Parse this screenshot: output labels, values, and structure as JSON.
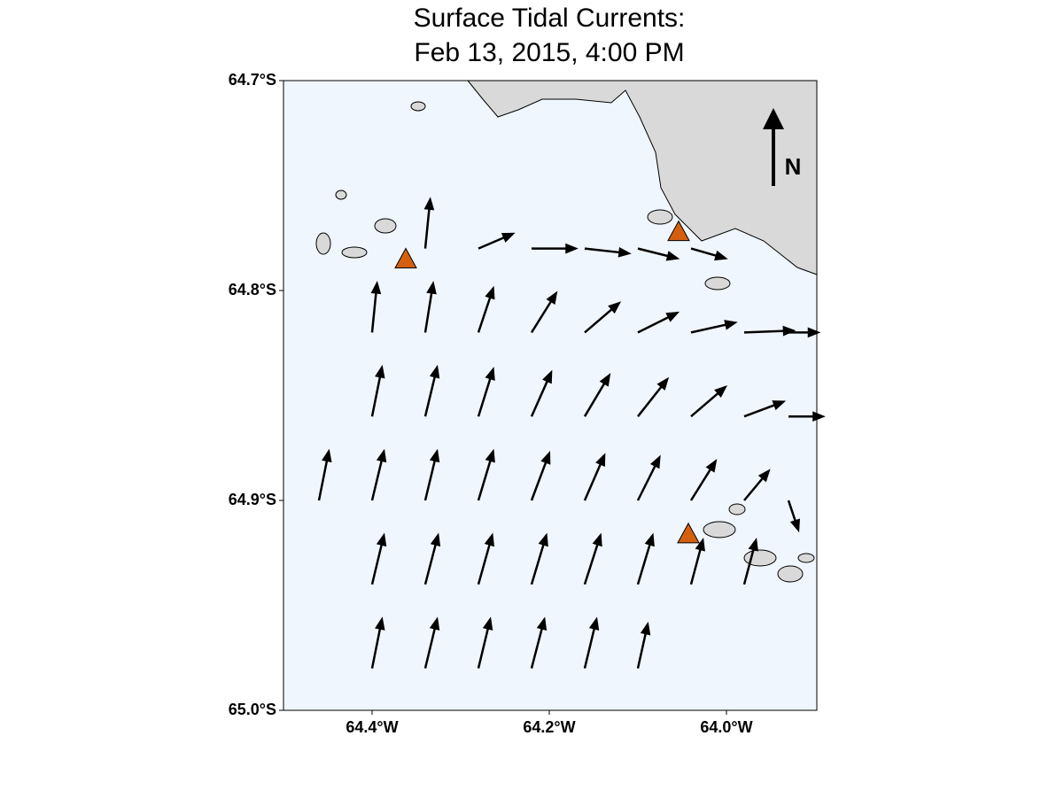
{
  "chart_data": {
    "type": "quiver",
    "title": [
      "Surface Tidal Currents:",
      "Feb 13, 2015,  4:00 PM"
    ],
    "xlim": [
      -64.5,
      -63.898
    ],
    "ylim": [
      -65.0,
      -64.7
    ],
    "xticks": [
      {
        "value": -64.4,
        "label": "64.4°W"
      },
      {
        "value": -64.2,
        "label": "64.2°W"
      },
      {
        "value": -64.0,
        "label": "64.0°W"
      }
    ],
    "yticks": [
      {
        "value": -64.7,
        "label": "64.7°S"
      },
      {
        "value": -64.8,
        "label": "64.8°S"
      },
      {
        "value": -64.9,
        "label": "64.9°S"
      },
      {
        "value": -65.0,
        "label": "65.0°S"
      }
    ],
    "north_label": "N",
    "arrow_color": "#000000",
    "arrows": [
      [
        -64.34,
        -64.78,
        0.05,
        0.5
      ],
      [
        -64.28,
        -64.78,
        0.35,
        0.15
      ],
      [
        -64.22,
        -64.78,
        0.45,
        0.0
      ],
      [
        -64.16,
        -64.78,
        0.45,
        -0.05
      ],
      [
        -64.1,
        -64.78,
        0.4,
        -0.1
      ],
      [
        -64.04,
        -64.78,
        0.35,
        -0.1
      ],
      [
        -64.4,
        -64.82,
        0.05,
        0.5
      ],
      [
        -64.34,
        -64.82,
        0.08,
        0.5
      ],
      [
        -64.28,
        -64.82,
        0.15,
        0.45
      ],
      [
        -64.22,
        -64.82,
        0.25,
        0.4
      ],
      [
        -64.16,
        -64.82,
        0.35,
        0.3
      ],
      [
        -64.1,
        -64.82,
        0.4,
        0.2
      ],
      [
        -64.04,
        -64.82,
        0.45,
        0.1
      ],
      [
        -63.98,
        -64.82,
        0.5,
        0.02
      ],
      [
        -63.93,
        -64.82,
        0.3,
        0.0
      ],
      [
        -64.4,
        -64.86,
        0.1,
        0.5
      ],
      [
        -64.34,
        -64.86,
        0.12,
        0.5
      ],
      [
        -64.28,
        -64.86,
        0.15,
        0.48
      ],
      [
        -64.22,
        -64.86,
        0.2,
        0.45
      ],
      [
        -64.16,
        -64.86,
        0.25,
        0.42
      ],
      [
        -64.1,
        -64.86,
        0.3,
        0.38
      ],
      [
        -64.04,
        -64.86,
        0.35,
        0.3
      ],
      [
        -63.98,
        -64.86,
        0.4,
        0.15
      ],
      [
        -63.93,
        -64.86,
        0.35,
        0.0
      ],
      [
        -64.46,
        -64.9,
        0.1,
        0.5
      ],
      [
        -64.4,
        -64.9,
        0.12,
        0.5
      ],
      [
        -64.34,
        -64.9,
        0.12,
        0.5
      ],
      [
        -64.28,
        -64.9,
        0.15,
        0.5
      ],
      [
        -64.22,
        -64.9,
        0.18,
        0.48
      ],
      [
        -64.16,
        -64.9,
        0.2,
        0.46
      ],
      [
        -64.1,
        -64.9,
        0.22,
        0.44
      ],
      [
        -64.04,
        -64.9,
        0.25,
        0.4
      ],
      [
        -63.98,
        -64.9,
        0.25,
        0.3
      ],
      [
        -63.93,
        -64.9,
        0.1,
        -0.3
      ],
      [
        -64.4,
        -64.94,
        0.12,
        0.5
      ],
      [
        -64.34,
        -64.94,
        0.13,
        0.5
      ],
      [
        -64.28,
        -64.94,
        0.14,
        0.5
      ],
      [
        -64.22,
        -64.94,
        0.15,
        0.5
      ],
      [
        -64.16,
        -64.94,
        0.16,
        0.5
      ],
      [
        -64.1,
        -64.94,
        0.15,
        0.5
      ],
      [
        -64.04,
        -64.94,
        0.12,
        0.45
      ],
      [
        -63.98,
        -64.94,
        0.12,
        0.45
      ],
      [
        -64.4,
        -64.98,
        0.1,
        0.5
      ],
      [
        -64.34,
        -64.98,
        0.12,
        0.5
      ],
      [
        -64.28,
        -64.98,
        0.12,
        0.5
      ],
      [
        -64.22,
        -64.98,
        0.13,
        0.5
      ],
      [
        -64.16,
        -64.98,
        0.12,
        0.5
      ],
      [
        -64.1,
        -64.98,
        0.1,
        0.45
      ]
    ],
    "stations": {
      "color": "#d4600f",
      "lon": [
        -64.362,
        -64.054,
        -64.043
      ],
      "lat": [
        -64.785,
        -64.772,
        -64.916
      ]
    }
  }
}
